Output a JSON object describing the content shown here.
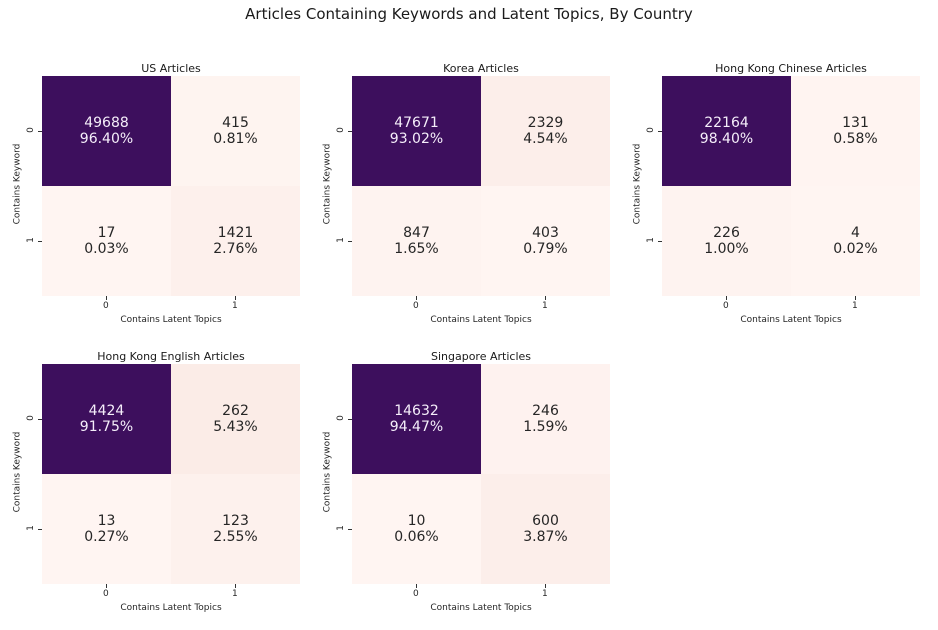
{
  "suptitle": "Articles Containing Keywords and Latent Topics, By Country",
  "colors": {
    "dark": "#3d0f5d",
    "light_low": "#fff5f2",
    "light_high": "#fbebe6"
  },
  "chart_data": [
    {
      "type": "heatmap",
      "title": "US Articles",
      "xlabel": "Contains Latent Topics",
      "ylabel": "Contains Keyword",
      "x_ticks": [
        "0",
        "1"
      ],
      "y_ticks": [
        "0",
        "1"
      ],
      "counts": [
        [
          49688,
          415
        ],
        [
          17,
          1421
        ]
      ],
      "percents": [
        [
          "96.40%",
          "0.81%"
        ],
        [
          "0.03%",
          "2.76%"
        ]
      ]
    },
    {
      "type": "heatmap",
      "title": "Korea Articles",
      "xlabel": "Contains Latent Topics",
      "ylabel": "Contains Keyword",
      "x_ticks": [
        "0",
        "1"
      ],
      "y_ticks": [
        "0",
        "1"
      ],
      "counts": [
        [
          47671,
          2329
        ],
        [
          847,
          403
        ]
      ],
      "percents": [
        [
          "93.02%",
          "4.54%"
        ],
        [
          "1.65%",
          "0.79%"
        ]
      ]
    },
    {
      "type": "heatmap",
      "title": "Hong Kong Chinese Articles",
      "xlabel": "Contains Latent Topics",
      "ylabel": "Contains Keyword",
      "x_ticks": [
        "0",
        "1"
      ],
      "y_ticks": [
        "0",
        "1"
      ],
      "counts": [
        [
          22164,
          131
        ],
        [
          226,
          4
        ]
      ],
      "percents": [
        [
          "98.40%",
          "0.58%"
        ],
        [
          "1.00%",
          "0.02%"
        ]
      ]
    },
    {
      "type": "heatmap",
      "title": "Hong Kong English Articles",
      "xlabel": "Contains Latent Topics",
      "ylabel": "Contains Keyword",
      "x_ticks": [
        "0",
        "1"
      ],
      "y_ticks": [
        "0",
        "1"
      ],
      "counts": [
        [
          4424,
          262
        ],
        [
          13,
          123
        ]
      ],
      "percents": [
        [
          "91.75%",
          "5.43%"
        ],
        [
          "0.27%",
          "2.55%"
        ]
      ]
    },
    {
      "type": "heatmap",
      "title": "Singapore Articles",
      "xlabel": "Contains Latent Topics",
      "ylabel": "Contains Keyword",
      "x_ticks": [
        "0",
        "1"
      ],
      "y_ticks": [
        "0",
        "1"
      ],
      "counts": [
        [
          14632,
          246
        ],
        [
          10,
          600
        ]
      ],
      "percents": [
        [
          "94.47%",
          "1.59%"
        ],
        [
          "0.06%",
          "3.87%"
        ]
      ]
    }
  ]
}
